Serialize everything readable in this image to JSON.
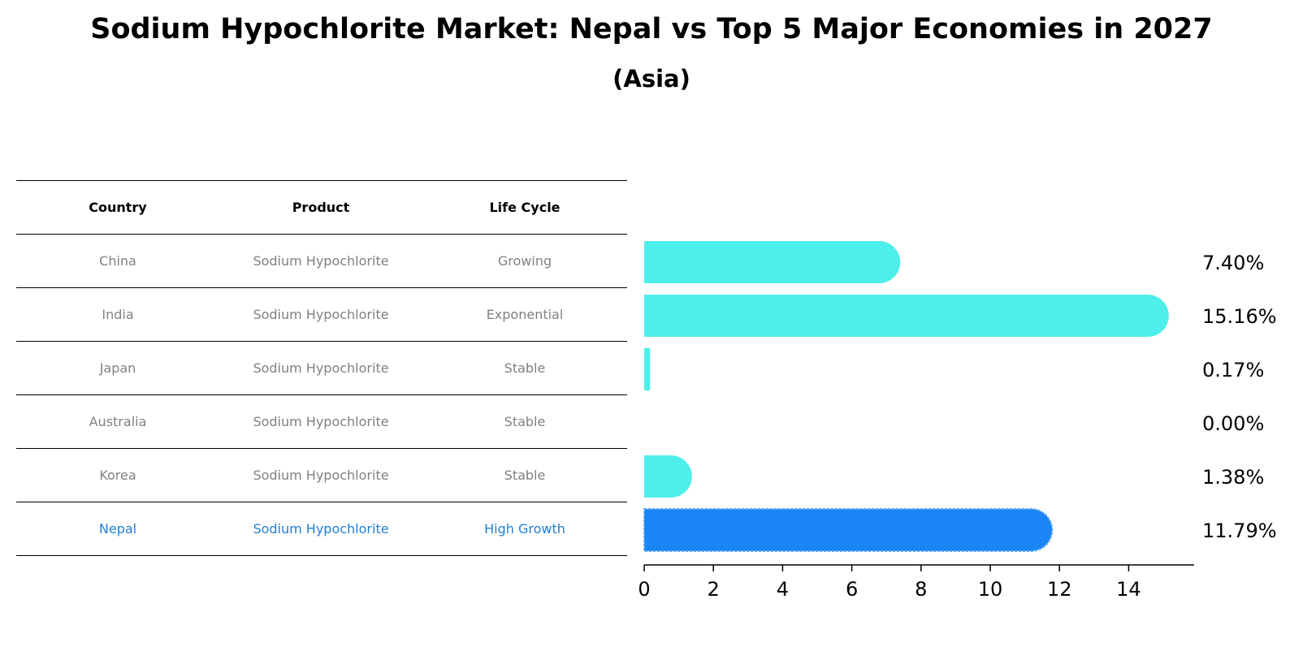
{
  "title": "Sodium Hypochlorite Market: Nepal vs Top 5 Major Economies in 2027",
  "subtitle": "(Asia)",
  "table": {
    "headers": [
      "Country",
      "Product",
      "Life Cycle"
    ],
    "rows": [
      [
        "China",
        "Sodium Hypochlorite",
        "Growing"
      ],
      [
        "India",
        "Sodium Hypochlorite",
        "Exponential"
      ],
      [
        "Japan",
        "Sodium Hypochlorite",
        "Stable"
      ],
      [
        "Australia",
        "Sodium Hypochlorite",
        "Stable"
      ],
      [
        "Korea",
        "Sodium Hypochlorite",
        "Stable"
      ],
      [
        "Nepal",
        "Sodium Hypochlorite",
        "High Growth"
      ]
    ],
    "highlight_row": 5,
    "highlight_color": "#1f7fd4"
  },
  "chart_data": {
    "type": "bar",
    "orientation": "horizontal",
    "categories": [
      "China",
      "India",
      "Japan",
      "Australia",
      "Korea",
      "Nepal"
    ],
    "values": [
      7.4,
      15.16,
      0.17,
      0.0,
      1.38,
      11.79
    ],
    "value_labels": [
      "7.40%",
      "15.16%",
      "0.17%",
      "0.00%",
      "1.38%",
      "11.79%"
    ],
    "xlim": [
      0,
      16
    ],
    "xticks": [
      0,
      2,
      4,
      6,
      8,
      10,
      12,
      14
    ],
    "colors": {
      "default": "#4eeeea",
      "highlight": "#1a86f5"
    },
    "highlight_index": 5
  }
}
